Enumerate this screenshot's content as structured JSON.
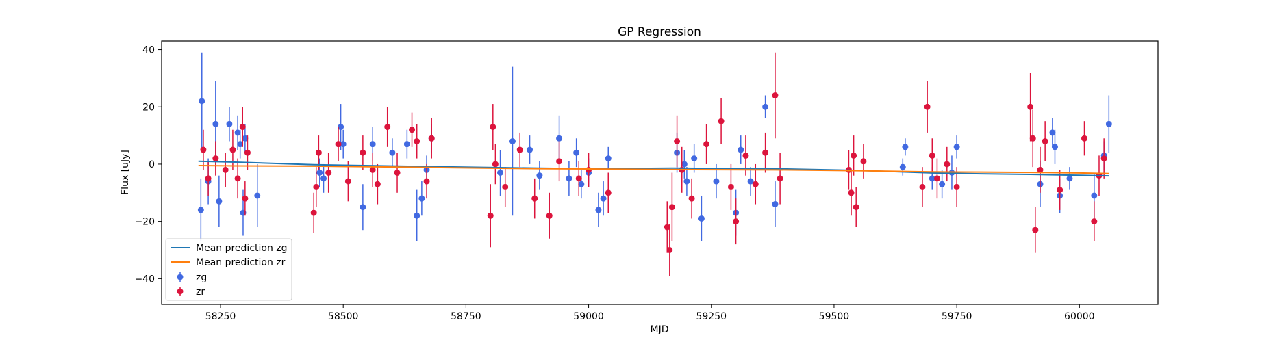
{
  "chart_data": {
    "type": "scatter",
    "title": "GP Regression",
    "xlabel": "MJD",
    "ylabel": "Flux [uJy]",
    "xlim": [
      58130,
      60160
    ],
    "ylim": [
      -49,
      43
    ],
    "xticks": [
      58250,
      58500,
      58750,
      59000,
      59250,
      59500,
      59750,
      60000
    ],
    "yticks": [
      -40,
      -20,
      0,
      20,
      40
    ],
    "grid": false,
    "legend_position": "lower-left",
    "legend": [
      "Mean prediction zg",
      "Mean prediction zr",
      "zg",
      "zr"
    ],
    "series": [
      {
        "name": "Mean prediction zg",
        "kind": "line",
        "color": "#1f77b4",
        "x": [
          58205,
          58280,
          58440,
          58700,
          58900,
          59000,
          59170,
          59380,
          59550,
          59700,
          59800,
          59900,
          60000,
          60060
        ],
        "y": [
          1.0,
          0.7,
          -0.2,
          -0.9,
          -1.4,
          -1.6,
          -1.4,
          -1.6,
          -2.2,
          -3.1,
          -3.4,
          -3.6,
          -3.9,
          -4.1
        ]
      },
      {
        "name": "Mean prediction zr",
        "kind": "line",
        "color": "#ff7f0e",
        "x": [
          58205,
          58280,
          58440,
          58700,
          58900,
          59000,
          59170,
          59380,
          59550,
          59700,
          59800,
          59900,
          60000,
          60060
        ],
        "y": [
          -0.5,
          -0.6,
          -0.7,
          -1.2,
          -1.6,
          -1.7,
          -1.9,
          -2.0,
          -2.3,
          -2.7,
          -2.8,
          -2.9,
          -3.1,
          -3.3
        ]
      },
      {
        "name": "zg",
        "kind": "errorbar",
        "color": "#4169e1",
        "x": [
          58210,
          58212,
          58225,
          58240,
          58247,
          58268,
          58285,
          58290,
          58296,
          58300,
          58325,
          58452,
          58460,
          58495,
          58500,
          58540,
          58560,
          58600,
          58630,
          58650,
          58660,
          58670,
          58680,
          58820,
          58845,
          58880,
          58900,
          58940,
          58960,
          58975,
          58985,
          59000,
          59020,
          59030,
          59040,
          59180,
          59195,
          59200,
          59215,
          59230,
          59260,
          59300,
          59310,
          59330,
          59360,
          59380,
          59640,
          59645,
          59700,
          59720,
          59740,
          59750,
          59920,
          59945,
          59950,
          59960,
          59980,
          60030,
          60050,
          60060
        ],
        "y": [
          -16,
          22,
          -6,
          14,
          -13,
          14,
          11,
          7,
          -17,
          9,
          -11,
          -3,
          -5,
          13,
          7,
          -15,
          7,
          4,
          7,
          -18,
          -12,
          -2,
          9,
          -3,
          8,
          5,
          -4,
          9,
          -5,
          4,
          -7,
          -3,
          -16,
          -12,
          2,
          4,
          0,
          -6,
          2,
          -19,
          -6,
          -17,
          5,
          -6,
          20,
          -14,
          -1,
          6,
          -5,
          -7,
          -3,
          6,
          -7,
          11,
          6,
          -11,
          -5,
          -11,
          3,
          14
        ],
        "yerr": [
          11,
          17,
          8,
          15,
          9,
          6,
          6,
          5,
          8,
          5,
          11,
          5,
          5,
          8,
          5,
          8,
          6,
          5,
          5,
          9,
          6,
          5,
          5,
          8,
          26,
          5,
          5,
          8,
          6,
          5,
          5,
          5,
          6,
          6,
          4,
          7,
          5,
          5,
          5,
          8,
          6,
          8,
          5,
          5,
          4,
          8,
          3,
          3,
          4,
          5,
          6,
          4,
          8,
          5,
          6,
          6,
          4,
          8,
          5,
          10
        ],
        "yerr_note": "symmetric error half-widths"
      },
      {
        "name": "zr",
        "kind": "errorbar",
        "color": "#dc143c",
        "x": [
          58215,
          58225,
          58240,
          58260,
          58275,
          58285,
          58295,
          58300,
          58305,
          58440,
          58445,
          58450,
          58470,
          58490,
          58510,
          58540,
          58560,
          58570,
          58590,
          58610,
          58640,
          58650,
          58670,
          58680,
          58800,
          58805,
          58810,
          58830,
          58860,
          58890,
          58920,
          58940,
          58980,
          59000,
          59040,
          59160,
          59165,
          59170,
          59180,
          59190,
          59210,
          59240,
          59270,
          59290,
          59300,
          59320,
          59340,
          59360,
          59380,
          59390,
          59530,
          59535,
          59540,
          59545,
          59560,
          59680,
          59690,
          59700,
          59710,
          59730,
          59750,
          59900,
          59905,
          59910,
          59920,
          59930,
          59960,
          60010,
          60030,
          60040,
          60050
        ],
        "y": [
          5,
          -5,
          2,
          -2,
          5,
          -5,
          13,
          -12,
          4,
          -17,
          -8,
          4,
          -3,
          7,
          -6,
          4,
          -2,
          -7,
          13,
          -3,
          12,
          8,
          -6,
          9,
          -18,
          13,
          0,
          -8,
          5,
          -12,
          -18,
          1,
          -5,
          -2,
          -10,
          -22,
          -30,
          -15,
          8,
          -2,
          -12,
          7,
          15,
          -8,
          -20,
          3,
          -7,
          4,
          24,
          -5,
          -2,
          -10,
          3,
          -15,
          1,
          -8,
          20,
          3,
          -5,
          0,
          -8,
          20,
          9,
          -23,
          -2,
          8,
          -9,
          9,
          -20,
          -4,
          2
        ],
        "yerr": [
          7,
          6,
          6,
          6,
          7,
          7,
          7,
          6,
          6,
          7,
          7,
          6,
          7,
          6,
          7,
          6,
          6,
          7,
          7,
          7,
          6,
          6,
          6,
          7,
          11,
          8,
          7,
          7,
          6,
          7,
          8,
          7,
          6,
          6,
          7,
          9,
          9,
          12,
          9,
          8,
          7,
          7,
          8,
          8,
          8,
          7,
          7,
          7,
          15,
          9,
          7,
          8,
          7,
          7,
          6,
          7,
          9,
          6,
          7,
          6,
          7,
          12,
          10,
          8,
          8,
          7,
          7,
          6,
          7,
          7,
          7
        ],
        "yerr_note": "symmetric error half-widths"
      }
    ]
  }
}
